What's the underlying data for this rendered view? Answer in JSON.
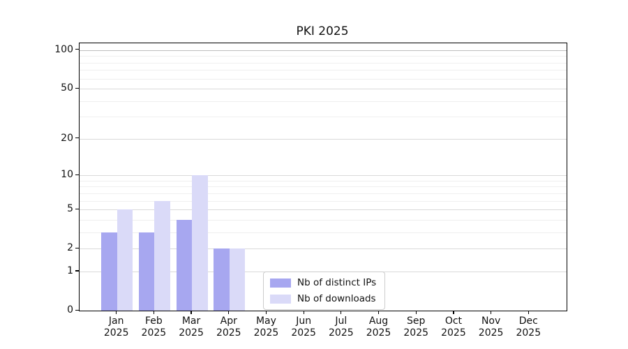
{
  "chart_data": {
    "type": "bar",
    "title": "PKI 2025",
    "categories": [
      "Jan",
      "Feb",
      "Mar",
      "Apr",
      "May",
      "Jun",
      "Jul",
      "Aug",
      "Sep",
      "Oct",
      "Nov",
      "Dec"
    ],
    "x_year_label": "2025",
    "series": [
      {
        "name": "Nb of distinct IPs",
        "color": "#a7a7f0",
        "values": [
          3,
          3,
          4,
          2,
          0,
          0,
          0,
          0,
          0,
          0,
          0,
          0
        ]
      },
      {
        "name": "Nb of downloads",
        "color": "#dadaf8",
        "values": [
          5,
          6,
          10,
          2,
          0,
          0,
          0,
          0,
          0,
          0,
          0,
          0
        ]
      }
    ],
    "y_axis": {
      "scale": "log1p",
      "major_ticks": [
        0,
        1,
        2,
        5,
        10,
        20,
        50,
        100
      ],
      "minor_ticks": [
        3,
        4,
        6,
        7,
        8,
        9,
        30,
        40,
        60,
        70,
        80,
        90
      ],
      "ylim": [
        0,
        113
      ]
    },
    "x_axis": {
      "year": "2025",
      "months_shown": 12
    },
    "legend": {
      "position": "lower-center",
      "entries": [
        "Nb of distinct IPs",
        "Nb of downloads"
      ]
    },
    "grid": true,
    "colors": {
      "bar_distinct_ips": "#a7a7f0",
      "bar_downloads": "#dadaf8",
      "major_grid": "#d9d9d9",
      "top_grid": "#bdbdbd",
      "minor_grid": "#efefef",
      "axis": "#000000",
      "text": "#111111"
    }
  }
}
